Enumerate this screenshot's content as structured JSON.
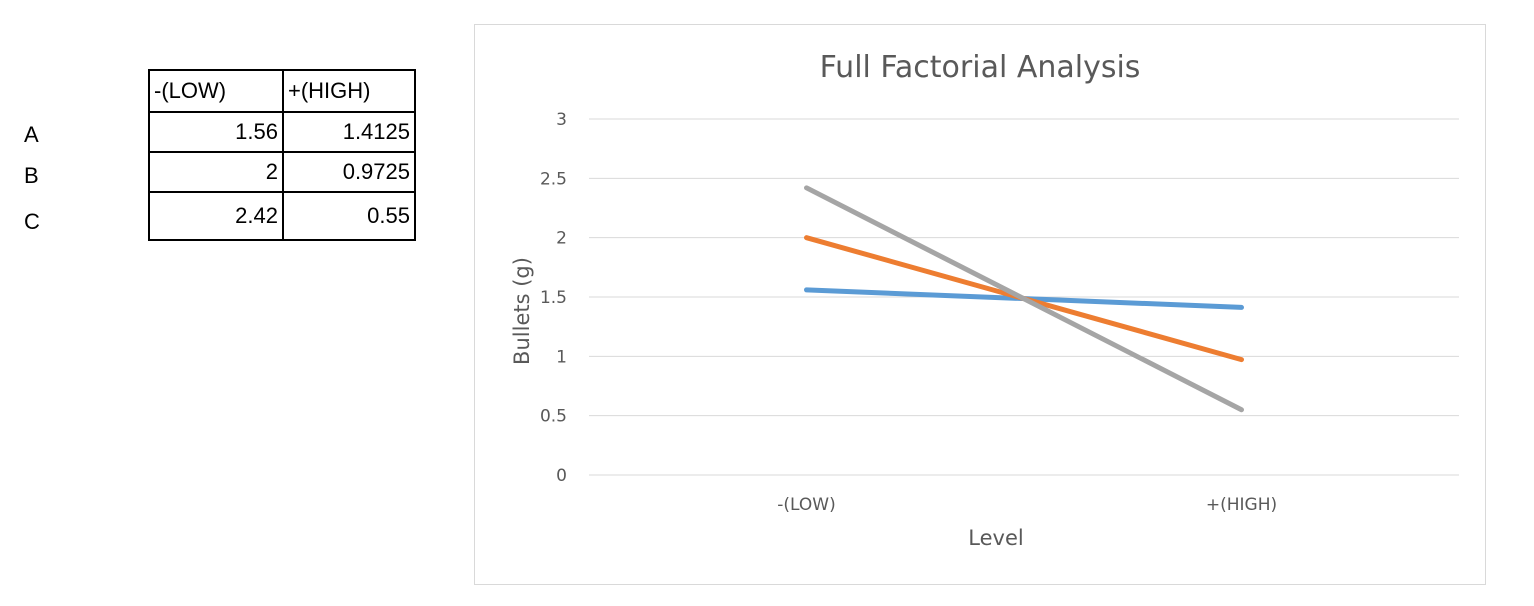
{
  "table": {
    "headers": [
      "-(LOW)",
      "+(HIGH)"
    ],
    "rows": [
      {
        "label": "A",
        "low": "1.56",
        "high": "1.4125"
      },
      {
        "label": "B",
        "low": "2",
        "high": "0.9725"
      },
      {
        "label": "C",
        "low": "2.42",
        "high": "0.55"
      }
    ]
  },
  "chart_data": {
    "type": "line",
    "title": "Full Factorial Analysis",
    "xlabel": "Level",
    "ylabel": "Bullets (g)",
    "categories": [
      "-(LOW)",
      "+(HIGH)"
    ],
    "ylim": [
      0,
      3
    ],
    "yticks": [
      "0",
      "0.5",
      "1",
      "1.5",
      "2",
      "2.5",
      "3"
    ],
    "ytick_values": [
      0,
      0.5,
      1,
      1.5,
      2,
      2.5,
      3
    ],
    "grid": true,
    "legend": "none",
    "series": [
      {
        "values": [
          1.56,
          1.4125
        ],
        "color": "#5b9bd5"
      },
      {
        "values": [
          2,
          0.9725
        ],
        "color": "#ed7d31"
      },
      {
        "values": [
          2.42,
          0.55
        ],
        "color": "#a5a5a5"
      }
    ],
    "gridline_color": "#d9d9d9",
    "text_color": "#595959"
  }
}
